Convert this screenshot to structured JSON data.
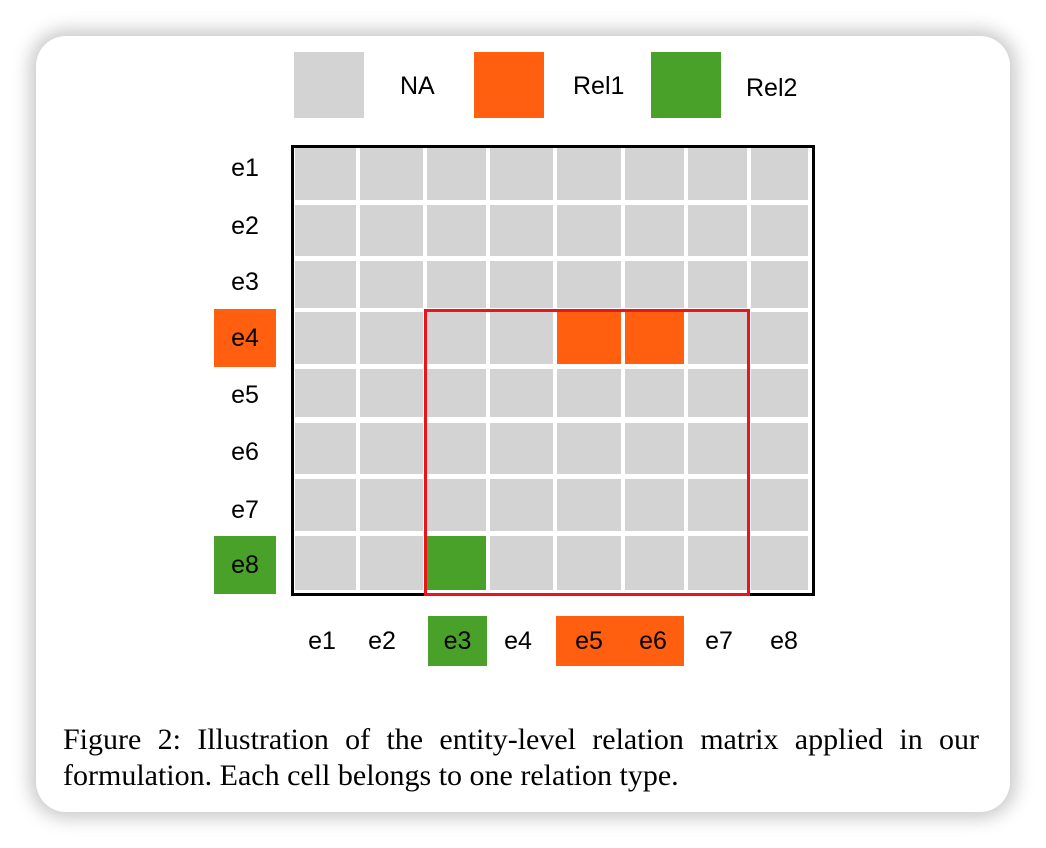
{
  "colors": {
    "na": "#d3d3d3",
    "rel1": "#ff5f0e",
    "rel2": "#4aa12a",
    "highlight": "#e8161b"
  },
  "legend": [
    {
      "label": "NA",
      "type": "na"
    },
    {
      "label": "Rel1",
      "type": "rel1"
    },
    {
      "label": "Rel2",
      "type": "rel2"
    }
  ],
  "rows": [
    {
      "label": "e1",
      "type": "none"
    },
    {
      "label": "e2",
      "type": "none"
    },
    {
      "label": "e3",
      "type": "none"
    },
    {
      "label": "e4",
      "type": "rel1"
    },
    {
      "label": "e5",
      "type": "none"
    },
    {
      "label": "e6",
      "type": "none"
    },
    {
      "label": "e7",
      "type": "none"
    },
    {
      "label": "e8",
      "type": "rel2"
    }
  ],
  "columns": [
    {
      "label": "e1",
      "type": "none"
    },
    {
      "label": "e2",
      "type": "none"
    },
    {
      "label": "e3",
      "type": "rel2"
    },
    {
      "label": "e4",
      "type": "none"
    },
    {
      "label": "e5",
      "type": "rel1"
    },
    {
      "label": "e6",
      "type": "rel1"
    },
    {
      "label": "e7",
      "type": "none"
    },
    {
      "label": "e8",
      "type": "none"
    }
  ],
  "matrix": [
    [
      "na",
      "na",
      "na",
      "na",
      "na",
      "na",
      "na",
      "na"
    ],
    [
      "na",
      "na",
      "na",
      "na",
      "na",
      "na",
      "na",
      "na"
    ],
    [
      "na",
      "na",
      "na",
      "na",
      "na",
      "na",
      "na",
      "na"
    ],
    [
      "na",
      "na",
      "na",
      "na",
      "rel1",
      "rel1",
      "na",
      "na"
    ],
    [
      "na",
      "na",
      "na",
      "na",
      "na",
      "na",
      "na",
      "na"
    ],
    [
      "na",
      "na",
      "na",
      "na",
      "na",
      "na",
      "na",
      "na"
    ],
    [
      "na",
      "na",
      "na",
      "na",
      "na",
      "na",
      "na",
      "na"
    ],
    [
      "na",
      "na",
      "rel2",
      "na",
      "na",
      "na",
      "na",
      "na"
    ]
  ],
  "highlight": {
    "rows": [
      3,
      7
    ],
    "cols": [
      2,
      6
    ]
  },
  "caption": "Figure 2: Illustration of the entity-level relation matrix applied in our formulation. Each cell belongs to one relation type."
}
